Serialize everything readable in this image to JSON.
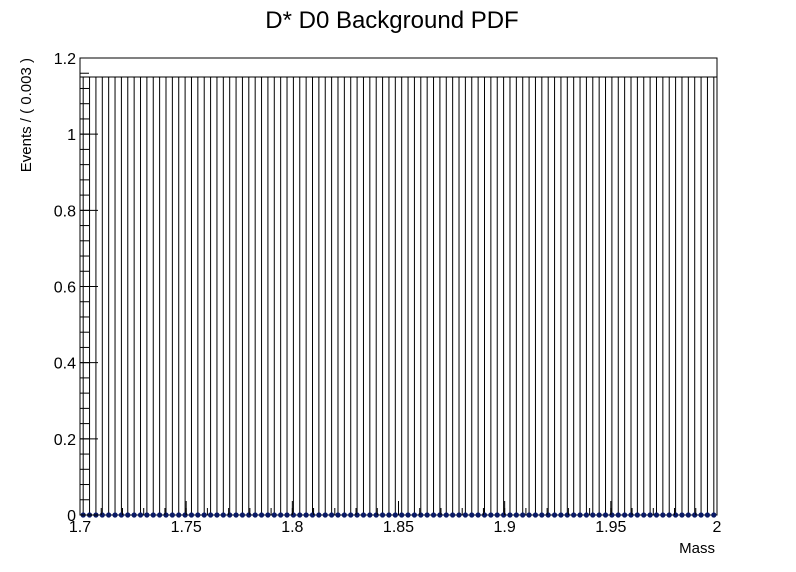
{
  "chart_data": {
    "type": "scatter",
    "title": "D* D0 Background PDF",
    "xlabel": "Mass",
    "ylabel": "Events / ( 0.003 )",
    "xlim": [
      1.7,
      2.0
    ],
    "ylim": [
      0,
      1.2
    ],
    "x_ticks": [
      "1.7",
      "1.75",
      "1.8",
      "1.85",
      "1.9",
      "1.95",
      "2"
    ],
    "y_ticks": [
      "0",
      "0.2",
      "0.4",
      "0.6",
      "0.8",
      "1",
      "1.2"
    ],
    "grid": false,
    "series": [
      {
        "x_start": 1.7015,
        "bin_width": 0.003,
        "n_points": 100,
        "y_value": 0,
        "y_error_low": 0,
        "y_error_high": 1.15
      }
    ],
    "marker_color": "#0a1a66"
  }
}
